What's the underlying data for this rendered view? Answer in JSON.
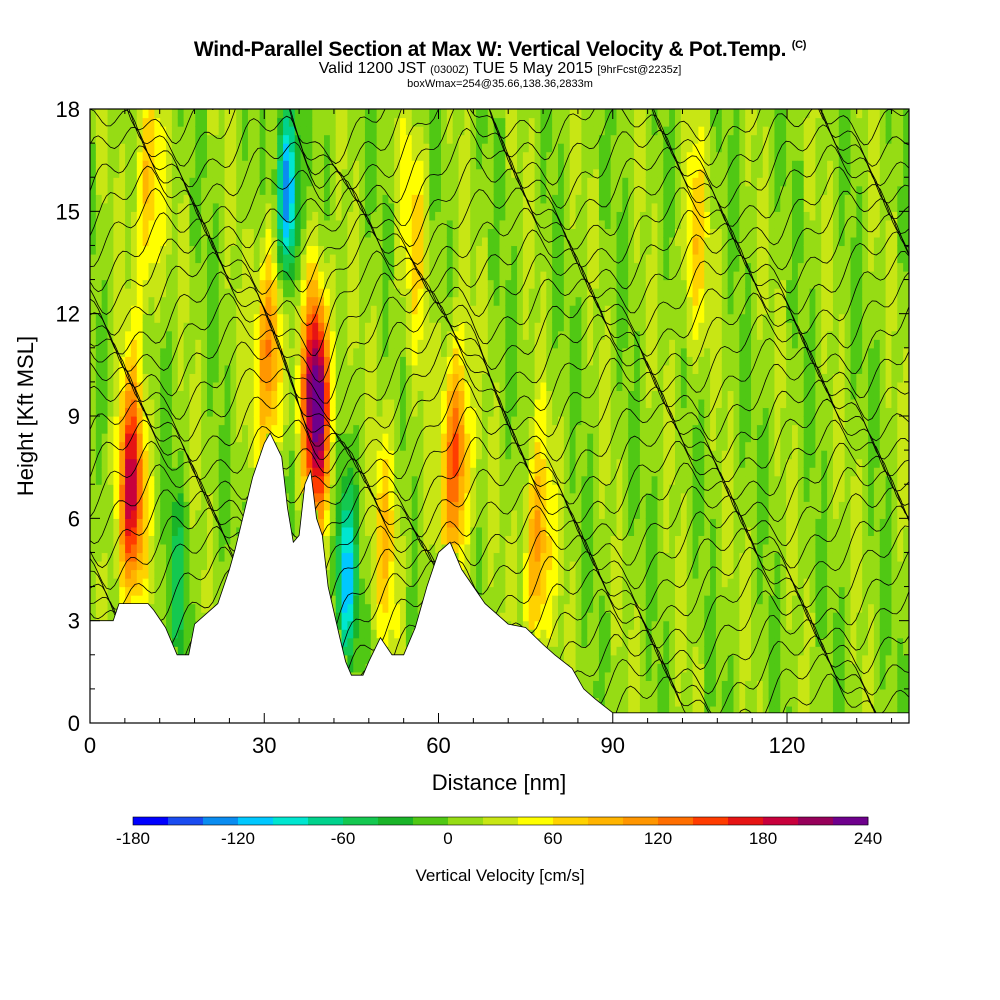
{
  "header": {
    "title": "Wind-Parallel Section at Max W: Vertical Velocity & Pot.Temp.",
    "title_mark": "(C)",
    "valid_prefix": "Valid 1200 JST",
    "valid_utc": "(0300Z)",
    "valid_date": "TUE 5 May 2015",
    "forecast": "[9hrFcst@2235z]",
    "box_info": "boxWmax=254@35.66,138.36,2833m"
  },
  "chart_data": {
    "type": "heatmap",
    "xlabel": "Distance [nm]",
    "ylabel": "Height [Kft MSL]",
    "xlim": [
      0,
      141
    ],
    "ylim": [
      0,
      18
    ],
    "x_ticks": [
      "0",
      "30",
      "60",
      "90",
      "120"
    ],
    "y_ticks": [
      "0",
      "3",
      "6",
      "9",
      "12",
      "15",
      "18"
    ],
    "terrain_kft": [
      [
        0,
        3.0
      ],
      [
        4,
        3.0
      ],
      [
        5,
        3.5
      ],
      [
        9,
        3.5
      ],
      [
        10,
        3.5
      ],
      [
        11,
        3.3
      ],
      [
        13,
        2.8
      ],
      [
        15,
        2.0
      ],
      [
        17,
        2.0
      ],
      [
        18,
        2.9
      ],
      [
        20,
        3.2
      ],
      [
        22,
        3.5
      ],
      [
        24,
        4.5
      ],
      [
        25,
        5.1
      ],
      [
        26,
        5.8
      ],
      [
        28,
        7.2
      ],
      [
        30,
        8.2
      ],
      [
        31,
        8.5
      ],
      [
        33,
        7.8
      ],
      [
        34,
        6.3
      ],
      [
        35,
        5.3
      ],
      [
        36,
        5.5
      ],
      [
        37,
        7.0
      ],
      [
        38,
        7.4
      ],
      [
        39,
        6.0
      ],
      [
        40,
        5.5
      ],
      [
        41,
        4.0
      ],
      [
        43,
        2.5
      ],
      [
        44,
        1.8
      ],
      [
        45,
        1.4
      ],
      [
        47,
        1.4
      ],
      [
        48,
        1.8
      ],
      [
        50,
        2.5
      ],
      [
        52,
        2.0
      ],
      [
        54,
        2.0
      ],
      [
        56,
        2.8
      ],
      [
        58,
        4.0
      ],
      [
        60,
        5.0
      ],
      [
        62,
        5.3
      ],
      [
        64,
        4.5
      ],
      [
        66,
        4.0
      ],
      [
        68,
        3.5
      ],
      [
        70,
        3.2
      ],
      [
        72,
        2.9
      ],
      [
        75,
        2.8
      ],
      [
        78,
        2.3
      ],
      [
        80,
        2.0
      ],
      [
        83,
        1.6
      ],
      [
        85,
        1.0
      ],
      [
        87,
        0.7
      ],
      [
        90,
        0.3
      ],
      [
        95,
        0.3
      ],
      [
        100,
        0.3
      ],
      [
        141,
        0.3
      ]
    ],
    "updraft_cores": [
      {
        "x": 7,
        "y": 6.8,
        "w": 180
      },
      {
        "x": 10,
        "y": 15.5,
        "w": 80
      },
      {
        "x": 31,
        "y": 11.0,
        "w": 120
      },
      {
        "x": 39,
        "y": 9.5,
        "w": 240
      },
      {
        "x": 51,
        "y": 5.5,
        "w": 60
      },
      {
        "x": 63,
        "y": 7.8,
        "w": 140
      },
      {
        "x": 77,
        "y": 5.0,
        "w": 100
      },
      {
        "x": 104,
        "y": 14.0,
        "w": 60
      },
      {
        "x": 56,
        "y": 14.5,
        "w": 50
      }
    ],
    "downdraft_cores": [
      {
        "x": 34,
        "y": 15.5,
        "w": -160
      },
      {
        "x": 44,
        "y": 4.2,
        "w": -120
      },
      {
        "x": 15,
        "y": 4.0,
        "w": -50
      }
    ],
    "colorbar": {
      "label": "Vertical Velocity [cm/s]",
      "min": -180,
      "max": 240,
      "step": 20,
      "tick_labels": [
        "-180",
        "-120",
        "-60",
        "0",
        "60",
        "120",
        "180",
        "240"
      ],
      "colors": [
        "#0000ff",
        "#1a4cf0",
        "#0a8cf0",
        "#00c8ff",
        "#00e6d0",
        "#00d28c",
        "#14c850",
        "#1ab428",
        "#50c814",
        "#96dc14",
        "#c8e614",
        "#ffff00",
        "#ffd200",
        "#ffb400",
        "#ff9600",
        "#ff6e00",
        "#ff3c00",
        "#e61414",
        "#c8003c",
        "#96005a",
        "#6e008c"
      ]
    }
  }
}
